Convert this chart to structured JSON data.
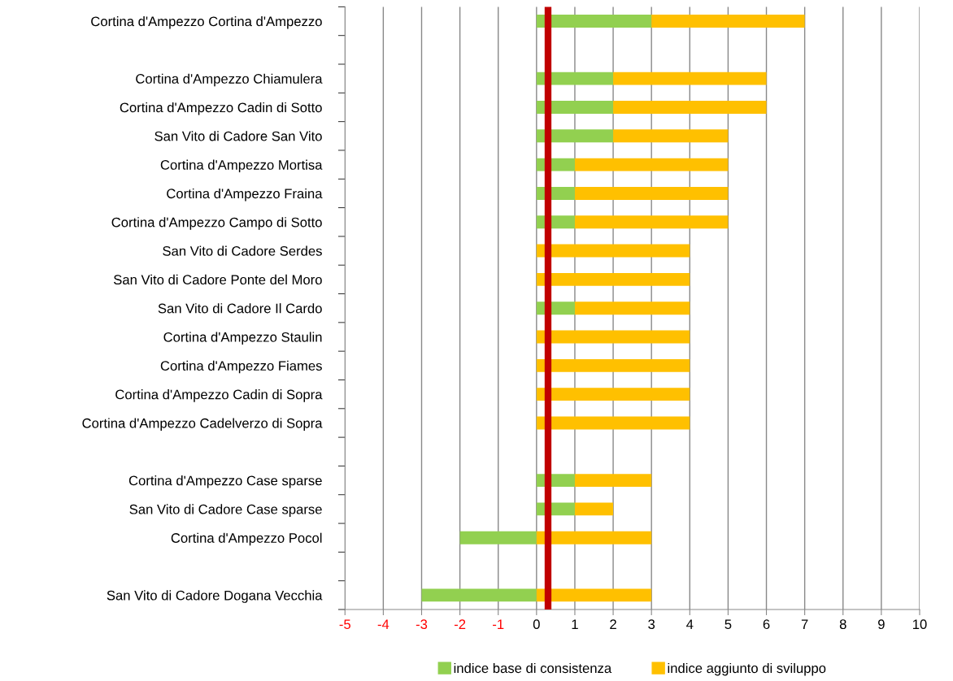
{
  "chart_data": {
    "type": "bar",
    "orientation": "horizontal",
    "stacked": true,
    "categories": [
      "Cortina d'Ampezzo Cortina d'Ampezzo",
      null,
      "Cortina d'Ampezzo Chiamulera",
      "Cortina d'Ampezzo Cadin di Sotto",
      "San Vito di Cadore San Vito",
      "Cortina d'Ampezzo Mortisa",
      "Cortina d'Ampezzo Fraina",
      "Cortina d'Ampezzo Campo di Sotto",
      "San Vito di Cadore Serdes",
      "San Vito di Cadore Ponte del Moro",
      "San Vito di Cadore Il Cardo",
      "Cortina d'Ampezzo Staulin",
      "Cortina d'Ampezzo Fiames",
      "Cortina d'Ampezzo Cadin di Sopra",
      "Cortina d'Ampezzo Cadelverzo di Sopra",
      null,
      "Cortina d'Ampezzo Case sparse",
      "San Vito di Cadore Case sparse",
      "Cortina d'Ampezzo Pocol",
      null,
      "San Vito di Cadore Dogana Vecchia"
    ],
    "series": [
      {
        "name": "indice base di consistenza",
        "color": "#92d050",
        "values": [
          3,
          null,
          2,
          2,
          2,
          1,
          1,
          1,
          0,
          0,
          1,
          0,
          0,
          0,
          0,
          null,
          1,
          1,
          -2,
          null,
          -3
        ]
      },
      {
        "name": "indice aggiunto di sviluppo",
        "color": "#ffc000",
        "values": [
          4,
          null,
          4,
          4,
          3,
          4,
          4,
          4,
          4,
          4,
          3,
          4,
          4,
          4,
          4,
          null,
          2,
          1,
          3,
          null,
          3
        ]
      }
    ],
    "xlim": [
      -5,
      10
    ],
    "xticks": [
      -5,
      -4,
      -3,
      -2,
      -1,
      0,
      1,
      2,
      3,
      4,
      5,
      6,
      7,
      8,
      9,
      10
    ],
    "ref_lines": [
      {
        "axis": "x",
        "value": 0.3,
        "color": "#c00000"
      }
    ],
    "grid": "x",
    "legend": "bottom"
  }
}
